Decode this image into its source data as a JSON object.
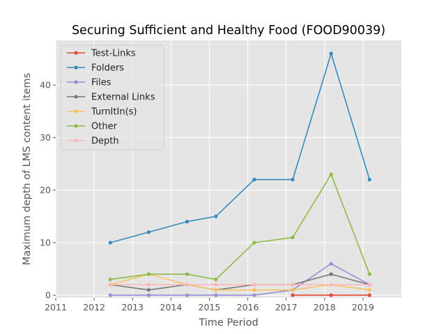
{
  "chart_data": {
    "type": "line",
    "title": "Securing Sufficient and Healthy Food (FOOD90039)",
    "xlabel": "Time Period",
    "ylabel": "Maximum depth of LMS content items",
    "xlim": [
      2011,
      2020
    ],
    "ylim": [
      -0.5,
      48.5
    ],
    "xticks": [
      "2011",
      "2012",
      "2013",
      "2014",
      "2015",
      "2016",
      "2017",
      "2018",
      "2019"
    ],
    "yticks": [
      "0",
      "10",
      "20",
      "30",
      "40"
    ],
    "grid": true,
    "legend_position": "top-left",
    "x": [
      2012.42,
      2013.42,
      2014.42,
      2015.17,
      2016.17,
      2017.17,
      2018.17,
      2019.17
    ],
    "series": [
      {
        "name": "Test-Links",
        "color": "#e24a33",
        "x": [
          2017.17,
          2018.17,
          2019.17
        ],
        "values": [
          0,
          0,
          0
        ]
      },
      {
        "name": "Folders",
        "color": "#348abd",
        "values": [
          10,
          12,
          14,
          15,
          22,
          22,
          46,
          22
        ]
      },
      {
        "name": "Files",
        "color": "#988ed5",
        "values": [
          0,
          0,
          0,
          0,
          0,
          1,
          6,
          2
        ]
      },
      {
        "name": "External Links",
        "color": "#777777",
        "values": [
          2,
          1,
          2,
          1,
          2,
          2,
          4,
          2
        ]
      },
      {
        "name": "TurnItIn(s)",
        "color": "#fbc15e",
        "values": [
          2,
          4,
          2,
          1,
          1,
          1,
          2,
          1
        ]
      },
      {
        "name": "Other",
        "color": "#8eba42",
        "values": [
          3,
          4,
          4,
          3,
          10,
          11,
          23,
          4
        ]
      },
      {
        "name": "Depth",
        "color": "#ffb5b8",
        "values": [
          2,
          2,
          2,
          2,
          2,
          2,
          2,
          2
        ]
      }
    ]
  }
}
